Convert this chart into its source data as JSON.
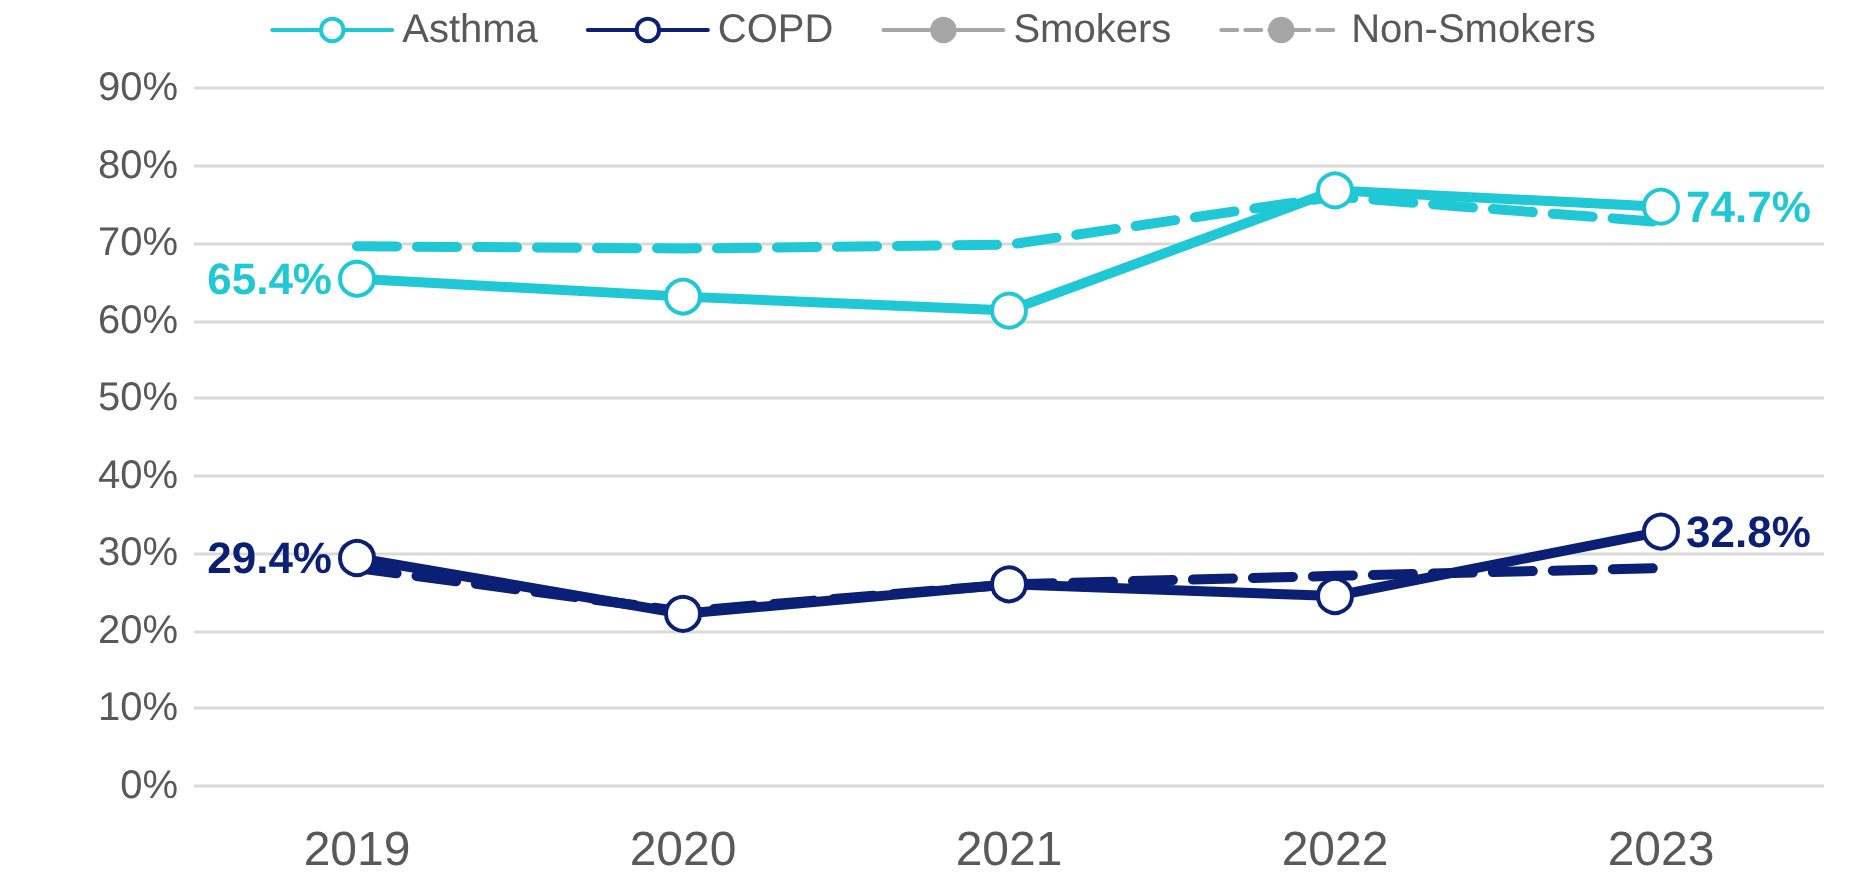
{
  "chart_data": {
    "type": "line",
    "categories": [
      "2019",
      "2020",
      "2021",
      "2022",
      "2023"
    ],
    "series": [
      {
        "name": "Asthma",
        "color": "#1fc8d4",
        "marker": "circle",
        "line_style": "solid",
        "values": [
          65.4,
          63.1,
          61.3,
          76.8,
          74.7
        ],
        "value_labels": [
          "65.4%",
          null,
          null,
          null,
          "74.7%"
        ]
      },
      {
        "name": "COPD",
        "color": "#0b1f75",
        "marker": "circle",
        "line_style": "solid",
        "values": [
          29.4,
          22.2,
          26.0,
          24.5,
          32.8
        ],
        "value_labels": [
          "29.4%",
          null,
          null,
          null,
          "32.8%"
        ]
      },
      {
        "name": "Smokers",
        "color": "#a6a6a6",
        "marker": "none",
        "line_style": "solid",
        "values": [
          null,
          null,
          null,
          null,
          null
        ]
      },
      {
        "name": "Non-Smokers",
        "color": "#a6a6a6",
        "marker": "none",
        "line_style": "dashed",
        "values": [
          null,
          null,
          null,
          null,
          null
        ]
      },
      {
        "color": "#1fc8d4",
        "marker": "none",
        "line_style": "dashed",
        "values": [
          69.6,
          69.3,
          69.8,
          76.0,
          72.7
        ]
      },
      {
        "color": "#0b1f75",
        "marker": "none",
        "line_style": "dashed",
        "values": [
          28.1,
          22.5,
          26.0,
          27.1,
          28.1
        ]
      }
    ],
    "ylim": [
      0,
      90
    ],
    "yticks": [
      {
        "value": 0,
        "label": "0%"
      },
      {
        "value": 10,
        "label": "10%"
      },
      {
        "value": 20,
        "label": "20%"
      },
      {
        "value": 30,
        "label": "30%"
      },
      {
        "value": 40,
        "label": "40%"
      },
      {
        "value": 50,
        "label": "50%"
      },
      {
        "value": 60,
        "label": "60%"
      },
      {
        "value": 70,
        "label": "70%"
      },
      {
        "value": 80,
        "label": "80%"
      },
      {
        "value": 90,
        "label": "90%"
      }
    ],
    "grid": "y",
    "legend": "top"
  }
}
